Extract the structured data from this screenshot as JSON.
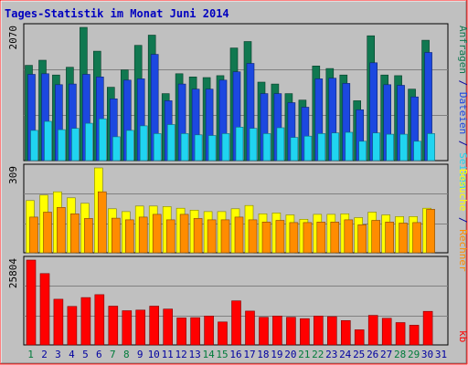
{
  "title": "Tages-Statistik im Monat Juni 2014",
  "colors": {
    "background": "#c0c0c0",
    "border": "#ff0000",
    "grid": "#808080",
    "title": "#0000c0",
    "hits": "#107850",
    "files": "#1c48e0",
    "pages": "#20d4f0",
    "visits": "#ffff00",
    "sites": "#ff8c00",
    "kbytes": "#ff0000",
    "weekend_day": "#007b3a",
    "weekday": "#0000a0"
  },
  "legend": {
    "top": [
      {
        "text": "Anfragen",
        "color_key": "hits"
      },
      {
        "text": " / ",
        "color_key": "weekday"
      },
      {
        "text": "Dateien",
        "color_key": "files"
      },
      {
        "text": " / ",
        "color_key": "weekday"
      },
      {
        "text": "Seiten",
        "color_key": "pages"
      }
    ],
    "middle": [
      {
        "text": "Besuche",
        "color_key": "visits"
      },
      {
        "text": " / ",
        "color_key": "weekday"
      },
      {
        "text": "Rechner",
        "color_key": "sites"
      }
    ],
    "bottom": [
      {
        "text": "kb",
        "color_key": "kbytes"
      }
    ]
  },
  "chart_data": [
    {
      "type": "bar",
      "name": "top",
      "max_label": "2070",
      "ylim": [
        0,
        2070
      ],
      "categories": [
        "1",
        "2",
        "3",
        "4",
        "5",
        "6",
        "7",
        "8",
        "9",
        "10",
        "11",
        "12",
        "13",
        "14",
        "15",
        "16",
        "17",
        "18",
        "19",
        "20",
        "21",
        "22",
        "23",
        "24",
        "25",
        "26",
        "27",
        "28",
        "29",
        "30",
        "31"
      ],
      "series": [
        {
          "name": "Anfragen",
          "color_key": "hits",
          "values": [
            1480,
            1560,
            1330,
            1450,
            2070,
            1700,
            1140,
            1410,
            1790,
            1950,
            1040,
            1350,
            1300,
            1290,
            1320,
            1750,
            1850,
            1220,
            1190,
            1040,
            940,
            1470,
            1430,
            1330,
            930,
            1940,
            1330,
            1320,
            1110,
            1870,
            null
          ]
        },
        {
          "name": "Dateien",
          "color_key": "files",
          "values": [
            1340,
            1350,
            1180,
            1190,
            1340,
            1300,
            960,
            1250,
            1270,
            1650,
            930,
            1190,
            1110,
            1110,
            1250,
            1380,
            1510,
            1040,
            1040,
            900,
            830,
            1270,
            1280,
            1200,
            790,
            1520,
            1180,
            1170,
            990,
            1680,
            null
          ]
        },
        {
          "name": "Seiten",
          "color_key": "pages",
          "values": [
            470,
            610,
            480,
            500,
            580,
            650,
            370,
            470,
            540,
            420,
            560,
            420,
            400,
            390,
            420,
            520,
            500,
            420,
            510,
            360,
            380,
            420,
            430,
            440,
            300,
            430,
            410,
            410,
            300,
            420,
            null
          ]
        }
      ]
    },
    {
      "type": "bar",
      "name": "middle",
      "max_label": "309",
      "ylim": [
        0,
        309
      ],
      "categories": [
        "1",
        "2",
        "3",
        "4",
        "5",
        "6",
        "7",
        "8",
        "9",
        "10",
        "11",
        "12",
        "13",
        "14",
        "15",
        "16",
        "17",
        "18",
        "19",
        "20",
        "21",
        "22",
        "23",
        "24",
        "25",
        "26",
        "27",
        "28",
        "29",
        "30",
        "31"
      ],
      "series": [
        {
          "name": "Besuche",
          "color_key": "visits",
          "values": [
            190,
            210,
            222,
            200,
            180,
            309,
            160,
            150,
            170,
            170,
            168,
            162,
            155,
            150,
            150,
            160,
            172,
            142,
            145,
            138,
            122,
            140,
            140,
            142,
            128,
            148,
            138,
            132,
            132,
            162,
            null
          ]
        },
        {
          "name": "Rechner",
          "color_key": "sites",
          "values": [
            130,
            148,
            165,
            142,
            125,
            222,
            126,
            120,
            130,
            140,
            120,
            140,
            125,
            120,
            120,
            130,
            120,
            112,
            118,
            110,
            110,
            112,
            112,
            120,
            102,
            118,
            112,
            108,
            110,
            158,
            null
          ]
        }
      ]
    },
    {
      "type": "bar",
      "name": "bottom",
      "max_label": "25804",
      "ylim": [
        0,
        25804
      ],
      "categories": [
        "1",
        "2",
        "3",
        "4",
        "5",
        "6",
        "7",
        "8",
        "9",
        "10",
        "11",
        "12",
        "13",
        "14",
        "15",
        "16",
        "17",
        "18",
        "19",
        "20",
        "21",
        "22",
        "23",
        "24",
        "25",
        "26",
        "27",
        "28",
        "29",
        "30",
        "31"
      ],
      "series": [
        {
          "name": "kb",
          "color_key": "kbytes",
          "values": [
            25804,
            21700,
            13900,
            11700,
            14400,
            15300,
            11800,
            10400,
            10600,
            11800,
            10900,
            8200,
            8300,
            8800,
            7000,
            13400,
            10300,
            8400,
            8800,
            8400,
            8000,
            8800,
            8600,
            7400,
            4600,
            9000,
            8100,
            6800,
            6000,
            10200,
            null
          ]
        }
      ]
    }
  ],
  "weekend_days": [
    "1",
    "7",
    "8",
    "14",
    "15",
    "21",
    "22",
    "28",
    "29"
  ]
}
